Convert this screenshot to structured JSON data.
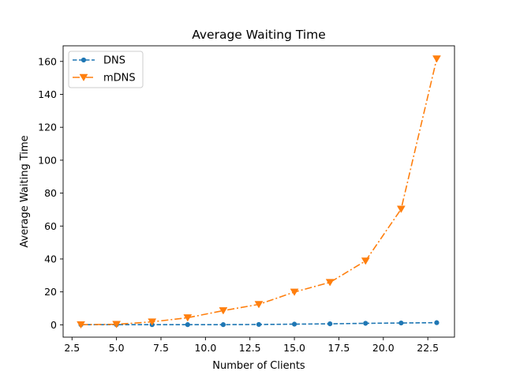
{
  "chart_data": {
    "type": "line",
    "title": "Average Waiting Time",
    "xlabel": "Number of Clients",
    "ylabel": "Average Waiting Time",
    "xlim": [
      2.0,
      24.0
    ],
    "ylim": [
      -7.5,
      169.5
    ],
    "xticks": [
      "2.5",
      "5.0",
      "7.5",
      "10.0",
      "12.5",
      "15.0",
      "17.5",
      "20.0",
      "22.5"
    ],
    "xtick_values": [
      2.5,
      5.0,
      7.5,
      10.0,
      12.5,
      15.0,
      17.5,
      20.0,
      22.5
    ],
    "yticks": [
      "0",
      "20",
      "40",
      "60",
      "80",
      "100",
      "120",
      "140",
      "160"
    ],
    "ytick_values": [
      0,
      20,
      40,
      60,
      80,
      100,
      120,
      140,
      160
    ],
    "grid": false,
    "legend_position": "top-left",
    "x": [
      3,
      5,
      7,
      9,
      11,
      13,
      15,
      17,
      19,
      21,
      23
    ],
    "series": [
      {
        "name": "DNS",
        "color": "#1f77b4",
        "linestyle": "dashed",
        "marker": "circle",
        "values": [
          0.1,
          0.1,
          0.1,
          0.1,
          0.1,
          0.2,
          0.4,
          0.6,
          0.9,
          1.1,
          1.3
        ]
      },
      {
        "name": "mDNS",
        "color": "#ff7f0e",
        "linestyle": "dashdot",
        "marker": "triangle-down",
        "values": [
          0.1,
          0.3,
          1.8,
          4.3,
          8.6,
          12.4,
          19.9,
          25.8,
          38.8,
          70.3,
          161.6
        ]
      }
    ]
  }
}
